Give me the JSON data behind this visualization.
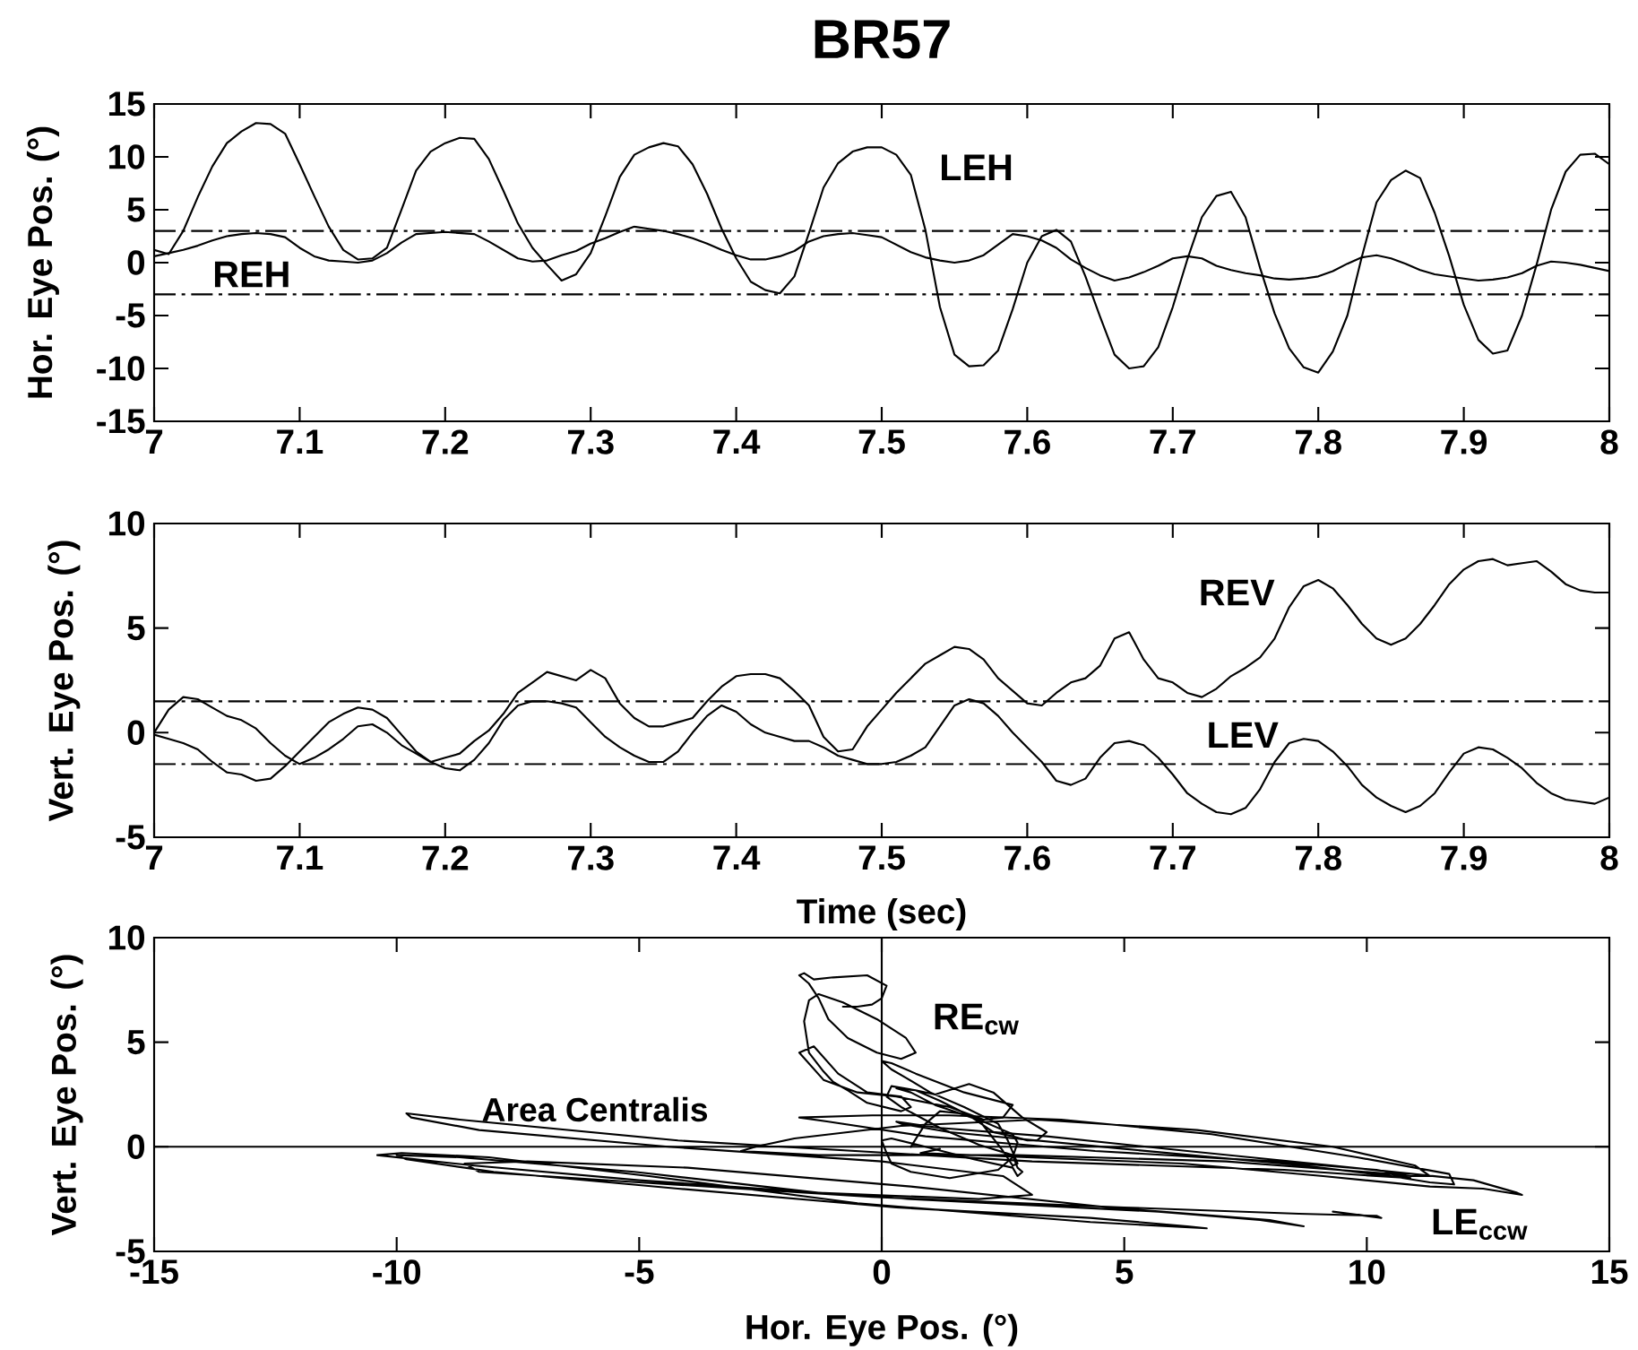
{
  "chart_data": [
    {
      "type": "line",
      "title": "BR57",
      "ylabel": "Hor. Eye Pos. (°)",
      "x": [
        7,
        7.01,
        7.02,
        7.03,
        7.04,
        7.05,
        7.06,
        7.07,
        7.08,
        7.09,
        7.1,
        7.11,
        7.12,
        7.13,
        7.14,
        7.15,
        7.16,
        7.17,
        7.18,
        7.19,
        7.2,
        7.21,
        7.22,
        7.23,
        7.24,
        7.25,
        7.26,
        7.27,
        7.28,
        7.29,
        7.3,
        7.31,
        7.32,
        7.33,
        7.34,
        7.35,
        7.36,
        7.37,
        7.38,
        7.39,
        7.4,
        7.41,
        7.42,
        7.43,
        7.44,
        7.45,
        7.46,
        7.47,
        7.48,
        7.49,
        7.5,
        7.51,
        7.52,
        7.53,
        7.54,
        7.55,
        7.56,
        7.57,
        7.58,
        7.59,
        7.6,
        7.61,
        7.62,
        7.63,
        7.64,
        7.65,
        7.66,
        7.67,
        7.68,
        7.69,
        7.7,
        7.71,
        7.72,
        7.73,
        7.74,
        7.75,
        7.76,
        7.77,
        7.78,
        7.79,
        7.8,
        7.81,
        7.82,
        7.83,
        7.84,
        7.85,
        7.86,
        7.87,
        7.88,
        7.89,
        7.9,
        7.91,
        7.92,
        7.93,
        7.94,
        7.95,
        7.96,
        7.97,
        7.98,
        7.99,
        8
      ],
      "series": [
        {
          "name": "REH",
          "color": "#000000",
          "values": [
            0.6,
            0.9,
            1.2,
            1.6,
            2.1,
            2.5,
            2.7,
            2.8,
            2.7,
            2.4,
            1.4,
            0.6,
            0.2,
            0.1,
            0.0,
            0.2,
            0.9,
            1.9,
            2.7,
            2.8,
            2.9,
            2.8,
            2.7,
            2.0,
            1.2,
            0.4,
            0.1,
            0.2,
            0.7,
            1.1,
            1.8,
            2.3,
            2.9,
            3.4,
            3.2,
            3.0,
            2.7,
            2.3,
            1.8,
            1.2,
            0.7,
            0.3,
            0.3,
            0.6,
            1.1,
            2.0,
            2.5,
            2.7,
            2.8,
            2.6,
            2.4,
            1.7,
            1.0,
            0.5,
            0.2,
            0.0,
            0.2,
            0.7,
            1.7,
            2.7,
            2.5,
            2.1,
            1.4,
            0.3,
            -0.5,
            -1.2,
            -1.7,
            -1.4,
            -0.9,
            -0.3,
            0.4,
            0.6,
            0.4,
            -0.3,
            -0.7,
            -1.0,
            -1.2,
            -1.5,
            -1.6,
            -1.5,
            -1.3,
            -0.8,
            -0.1,
            0.5,
            0.7,
            0.4,
            -0.1,
            -0.7,
            -1.1,
            -1.3,
            -1.5,
            -1.7,
            -1.6,
            -1.4,
            -1.0,
            -0.3,
            0.1,
            0.0,
            -0.2,
            -0.5,
            -0.8
          ]
        },
        {
          "name": "LEH",
          "color": "#000000",
          "values": [
            1.2,
            0.8,
            3.0,
            6.2,
            9.1,
            11.3,
            12.4,
            13.2,
            13.1,
            12.2,
            9.3,
            6.3,
            3.4,
            1.2,
            0.3,
            0.4,
            1.4,
            5.0,
            8.7,
            10.5,
            11.3,
            11.8,
            11.7,
            9.8,
            6.8,
            3.7,
            1.4,
            -0.2,
            -1.7,
            -1.1,
            0.9,
            4.4,
            8.1,
            10.2,
            10.9,
            11.3,
            11.0,
            9.3,
            6.5,
            3.2,
            0.4,
            -1.8,
            -2.6,
            -2.9,
            -1.3,
            2.8,
            7.1,
            9.4,
            10.5,
            10.9,
            10.9,
            10.2,
            8.3,
            3.1,
            -4.2,
            -8.7,
            -9.8,
            -9.7,
            -8.3,
            -4.4,
            0.0,
            2.5,
            3.1,
            2.0,
            -1.3,
            -5.1,
            -8.7,
            -10.0,
            -9.8,
            -8.0,
            -4.2,
            0.3,
            4.3,
            6.3,
            6.7,
            4.3,
            -0.5,
            -4.8,
            -8.1,
            -9.9,
            -10.4,
            -8.4,
            -5.0,
            0.6,
            5.7,
            7.8,
            8.7,
            8.0,
            4.7,
            0.6,
            -4.0,
            -7.3,
            -8.6,
            -8.3,
            -5.0,
            -0.2,
            5.0,
            8.6,
            10.2,
            10.3,
            9.3
          ]
        }
      ],
      "xlim": [
        7,
        8
      ],
      "xticks": [
        7,
        7.1,
        7.2,
        7.3,
        7.4,
        7.5,
        7.6,
        7.7,
        7.8,
        7.9,
        8
      ],
      "ylim": [
        -15,
        15
      ],
      "yticks": [
        -15,
        -10,
        -5,
        0,
        5,
        10,
        15
      ],
      "ref_lines": [
        {
          "axis": "y",
          "value": 3,
          "line_style": "dashdot"
        },
        {
          "axis": "y",
          "value": -3,
          "line_style": "dashdot"
        }
      ]
    },
    {
      "type": "line",
      "xlabel": "Time (sec)",
      "ylabel": "Vert. Eye Pos. (°)",
      "x": [
        7,
        7.01,
        7.02,
        7.03,
        7.04,
        7.05,
        7.06,
        7.07,
        7.08,
        7.09,
        7.1,
        7.11,
        7.12,
        7.13,
        7.14,
        7.15,
        7.16,
        7.17,
        7.18,
        7.19,
        7.2,
        7.21,
        7.22,
        7.23,
        7.24,
        7.25,
        7.26,
        7.27,
        7.28,
        7.29,
        7.3,
        7.31,
        7.32,
        7.33,
        7.34,
        7.35,
        7.36,
        7.37,
        7.38,
        7.39,
        7.4,
        7.41,
        7.42,
        7.43,
        7.44,
        7.45,
        7.46,
        7.47,
        7.48,
        7.49,
        7.5,
        7.51,
        7.52,
        7.53,
        7.54,
        7.55,
        7.56,
        7.57,
        7.58,
        7.59,
        7.6,
        7.61,
        7.62,
        7.63,
        7.64,
        7.65,
        7.66,
        7.67,
        7.68,
        7.69,
        7.7,
        7.71,
        7.72,
        7.73,
        7.74,
        7.75,
        7.76,
        7.77,
        7.78,
        7.79,
        7.8,
        7.81,
        7.82,
        7.83,
        7.84,
        7.85,
        7.86,
        7.87,
        7.88,
        7.89,
        7.9,
        7.91,
        7.92,
        7.93,
        7.94,
        7.95,
        7.96,
        7.97,
        7.98,
        7.99,
        8
      ],
      "series": [
        {
          "name": "REV",
          "color": "#000000",
          "values": [
            0.0,
            1.1,
            1.7,
            1.6,
            1.2,
            0.8,
            0.6,
            0.2,
            -0.5,
            -1.1,
            -1.5,
            -1.2,
            -0.8,
            -0.3,
            0.3,
            0.4,
            0.0,
            -0.6,
            -1.0,
            -1.4,
            -1.2,
            -1.0,
            -0.4,
            0.1,
            0.9,
            1.9,
            2.4,
            2.9,
            2.7,
            2.5,
            3.0,
            2.6,
            1.4,
            0.7,
            0.3,
            0.3,
            0.5,
            0.7,
            1.5,
            2.2,
            2.7,
            2.8,
            2.8,
            2.6,
            2.0,
            1.3,
            -0.2,
            -0.9,
            -0.8,
            0.3,
            1.1,
            1.9,
            2.6,
            3.3,
            3.7,
            4.1,
            4.0,
            3.5,
            2.6,
            2.0,
            1.4,
            1.3,
            1.9,
            2.4,
            2.6,
            3.2,
            4.5,
            4.8,
            3.5,
            2.6,
            2.4,
            1.9,
            1.7,
            2.1,
            2.7,
            3.1,
            3.6,
            4.5,
            6.0,
            7.0,
            7.3,
            6.9,
            6.1,
            5.2,
            4.5,
            4.2,
            4.5,
            5.2,
            6.1,
            7.1,
            7.8,
            8.2,
            8.3,
            8.0,
            8.1,
            8.2,
            7.7,
            7.1,
            6.8,
            6.7,
            6.7
          ]
        },
        {
          "name": "LEV",
          "color": "#000000",
          "values": [
            -0.1,
            -0.3,
            -0.5,
            -0.8,
            -1.4,
            -1.9,
            -2.0,
            -2.3,
            -2.2,
            -1.6,
            -0.9,
            -0.2,
            0.5,
            0.9,
            1.2,
            1.1,
            0.7,
            -0.1,
            -0.9,
            -1.4,
            -1.7,
            -1.8,
            -1.3,
            -0.5,
            0.6,
            1.3,
            1.5,
            1.5,
            1.4,
            1.2,
            0.5,
            -0.2,
            -0.7,
            -1.1,
            -1.4,
            -1.4,
            -0.9,
            0.0,
            0.8,
            1.3,
            1.0,
            0.4,
            0.0,
            -0.2,
            -0.4,
            -0.4,
            -0.7,
            -1.1,
            -1.3,
            -1.5,
            -1.5,
            -1.4,
            -1.1,
            -0.7,
            0.3,
            1.3,
            1.6,
            1.4,
            0.8,
            0.0,
            -0.7,
            -1.4,
            -2.3,
            -2.5,
            -2.2,
            -1.2,
            -0.5,
            -0.4,
            -0.6,
            -1.2,
            -2.0,
            -2.9,
            -3.4,
            -3.8,
            -3.9,
            -3.6,
            -2.7,
            -1.4,
            -0.5,
            -0.3,
            -0.4,
            -0.9,
            -1.6,
            -2.5,
            -3.1,
            -3.5,
            -3.8,
            -3.5,
            -2.9,
            -1.9,
            -1.0,
            -0.7,
            -0.8,
            -1.2,
            -1.7,
            -2.4,
            -2.9,
            -3.2,
            -3.3,
            -3.4,
            -3.1
          ]
        }
      ],
      "xlim": [
        7,
        8
      ],
      "xticks": [
        7,
        7.1,
        7.2,
        7.3,
        7.4,
        7.5,
        7.6,
        7.7,
        7.8,
        7.9,
        8
      ],
      "ylim": [
        -5,
        10
      ],
      "yticks": [
        -5,
        0,
        5,
        10
      ],
      "ref_lines": [
        {
          "axis": "y",
          "value": 1.5,
          "line_style": "dashdot"
        },
        {
          "axis": "y",
          "value": -1.5,
          "line_style": "dashdot"
        }
      ]
    },
    {
      "type": "line",
      "xlabel": "Hor. Eye Pos. (°)",
      "ylabel": "Vert. Eye Pos. (°)",
      "series": [
        {
          "name": "RE$_{cw}$",
          "color": "#000000",
          "x": [
            0.6,
            0.9,
            1.2,
            1.6,
            2.1,
            2.5,
            2.7,
            2.8,
            2.7,
            2.4,
            1.4,
            0.6,
            0.2,
            0.1,
            0.0,
            0.2,
            0.9,
            1.9,
            2.7,
            2.8,
            2.9,
            2.8,
            2.7,
            2.0,
            1.2,
            0.4,
            0.1,
            0.2,
            0.7,
            1.1,
            1.8,
            2.3,
            2.9,
            3.4,
            3.2,
            3.0,
            2.7,
            2.3,
            1.8,
            1.2,
            0.7,
            0.3,
            0.3,
            0.6,
            1.1,
            2.0,
            2.5,
            2.7,
            2.8,
            2.6,
            2.4,
            1.7,
            1.0,
            0.5,
            0.2,
            0.0,
            0.2,
            0.7,
            1.7,
            2.7,
            2.5,
            2.1,
            1.4,
            0.3,
            -0.5,
            -1.2,
            -1.7,
            -1.4,
            -0.9,
            -0.3,
            0.4,
            0.6,
            0.4,
            -0.3,
            -0.7,
            -1.0,
            -1.2,
            -1.5,
            -1.6,
            -1.5,
            -1.3,
            -0.8,
            -0.1,
            0.5,
            0.7,
            0.4,
            -0.1,
            -0.7,
            -1.1,
            -1.3,
            -1.5,
            -1.7,
            -1.6,
            -1.4,
            -1.0,
            -0.3,
            0.1,
            0.0,
            -0.2,
            -0.5,
            -0.8
          ],
          "values": [
            0.0,
            1.1,
            1.7,
            1.6,
            1.2,
            0.8,
            0.6,
            0.2,
            -0.5,
            -1.1,
            -1.5,
            -1.2,
            -0.8,
            -0.3,
            0.3,
            0.4,
            0.0,
            -0.6,
            -1.0,
            -1.4,
            -1.2,
            -1.0,
            -0.4,
            0.1,
            0.9,
            1.9,
            2.4,
            2.9,
            2.7,
            2.5,
            3.0,
            2.6,
            1.4,
            0.7,
            0.3,
            0.3,
            0.5,
            0.7,
            1.5,
            2.2,
            2.7,
            2.8,
            2.8,
            2.6,
            2.0,
            1.3,
            -0.2,
            -0.9,
            -0.8,
            0.3,
            1.1,
            1.9,
            2.6,
            3.3,
            3.7,
            4.1,
            4.0,
            3.5,
            2.6,
            2.0,
            1.4,
            1.3,
            1.9,
            2.4,
            2.6,
            3.2,
            4.5,
            4.8,
            3.5,
            2.6,
            2.4,
            1.9,
            1.7,
            2.1,
            2.7,
            3.1,
            3.6,
            4.5,
            6.0,
            7.0,
            7.3,
            6.9,
            6.1,
            5.2,
            4.5,
            4.2,
            4.5,
            5.2,
            6.1,
            7.1,
            7.8,
            8.2,
            8.3,
            8.0,
            8.1,
            8.2,
            7.7,
            7.1,
            6.8,
            6.7,
            6.7
          ]
        },
        {
          "name": "LE$_{ccw}$",
          "color": "#000000",
          "x": [
            1.2,
            0.8,
            3.0,
            6.2,
            9.1,
            11.3,
            12.4,
            13.2,
            13.1,
            12.2,
            9.3,
            6.3,
            3.4,
            1.2,
            0.3,
            0.4,
            1.4,
            5.0,
            8.7,
            10.5,
            11.3,
            11.8,
            11.7,
            9.8,
            6.8,
            3.7,
            1.4,
            -0.2,
            -1.7,
            -1.1,
            0.9,
            4.4,
            8.1,
            10.2,
            10.9,
            11.3,
            11.0,
            9.3,
            6.5,
            3.2,
            0.4,
            -1.8,
            -2.6,
            -2.9,
            -1.3,
            2.8,
            7.1,
            9.4,
            10.5,
            10.9,
            10.9,
            10.2,
            8.3,
            3.1,
            -4.2,
            -8.7,
            -9.8,
            -9.7,
            -8.3,
            -4.4,
            0.0,
            2.5,
            3.1,
            2.0,
            -1.3,
            -5.1,
            -8.7,
            -10.0,
            -9.8,
            -8.0,
            -4.2,
            0.3,
            4.3,
            6.3,
            6.7,
            4.3,
            -0.5,
            -4.8,
            -8.1,
            -9.9,
            -10.4,
            -8.4,
            -5.0,
            0.6,
            5.7,
            7.8,
            8.7,
            8.0,
            4.7,
            0.6,
            -4.0,
            -7.3,
            -8.6,
            -8.3,
            -5.0,
            -0.2,
            5.0,
            8.6,
            10.2,
            10.3,
            9.3
          ],
          "values": [
            -0.1,
            -0.3,
            -0.5,
            -0.8,
            -1.4,
            -1.9,
            -2.0,
            -2.3,
            -2.2,
            -1.6,
            -0.9,
            -0.2,
            0.5,
            0.9,
            1.2,
            1.1,
            0.7,
            -0.1,
            -0.9,
            -1.4,
            -1.7,
            -1.8,
            -1.3,
            -0.5,
            0.6,
            1.3,
            1.5,
            1.5,
            1.4,
            1.2,
            0.5,
            -0.2,
            -0.7,
            -1.1,
            -1.4,
            -1.4,
            -0.9,
            0.0,
            0.8,
            1.3,
            1.0,
            0.4,
            0.0,
            -0.2,
            -0.4,
            -0.4,
            -0.7,
            -1.1,
            -1.3,
            -1.5,
            -1.5,
            -1.4,
            -1.1,
            -0.7,
            0.3,
            1.3,
            1.6,
            1.4,
            0.8,
            0.0,
            -0.7,
            -1.4,
            -2.3,
            -2.5,
            -2.2,
            -1.2,
            -0.5,
            -0.4,
            -0.6,
            -1.2,
            -2.0,
            -2.9,
            -3.4,
            -3.8,
            -3.9,
            -3.6,
            -2.7,
            -1.4,
            -0.5,
            -0.3,
            -0.4,
            -0.9,
            -1.6,
            -2.5,
            -3.1,
            -3.5,
            -3.8,
            -3.5,
            -2.9,
            -1.9,
            -1.0,
            -0.7,
            -0.8,
            -1.2,
            -1.7,
            -2.4,
            -2.9,
            -3.2,
            -3.3,
            -3.4,
            -3.1
          ]
        }
      ],
      "xlim": [
        -15,
        15
      ],
      "xticks": [
        -15,
        -10,
        -5,
        0,
        5,
        10,
        15
      ],
      "ylim": [
        -5,
        10
      ],
      "yticks": [
        -5,
        0,
        5,
        10
      ],
      "ref_lines": [
        {
          "axis": "x",
          "value": 0
        },
        {
          "axis": "y",
          "value": 0,
          "label": "Area Centralis"
        }
      ]
    }
  ]
}
